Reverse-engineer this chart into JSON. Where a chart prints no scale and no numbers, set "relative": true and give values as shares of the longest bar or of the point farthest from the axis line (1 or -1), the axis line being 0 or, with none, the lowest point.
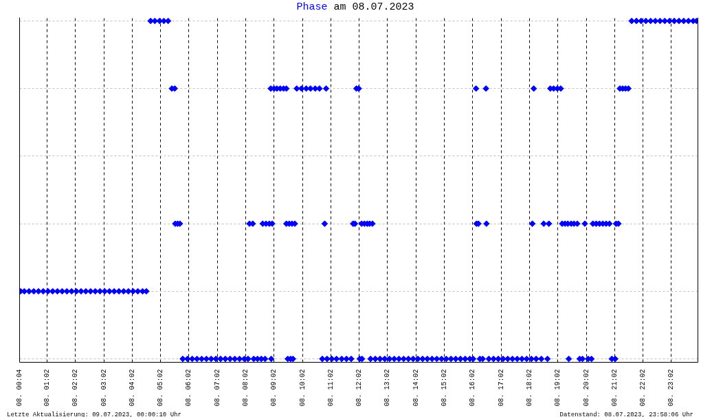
{
  "chart_data": {
    "type": "scatter",
    "title": "Phase am 08.07.2023",
    "x": [
      "2023-07-08T00:06",
      "2023-07-08T00:14",
      "2023-07-08T00:24",
      "2023-07-08T00:34",
      "2023-07-08T00:44",
      "2023-07-08T00:54",
      "2023-07-08T01:04",
      "2023-07-08T01:14",
      "2023-07-08T01:24",
      "2023-07-08T01:34",
      "2023-07-08T01:44",
      "2023-07-08T01:54",
      "2023-07-08T02:04",
      "2023-07-08T02:14",
      "2023-07-08T02:24",
      "2023-07-08T02:34",
      "2023-07-08T02:44",
      "2023-07-08T02:54",
      "2023-07-08T03:04",
      "2023-07-08T03:14",
      "2023-07-08T03:24",
      "2023-07-08T03:34",
      "2023-07-08T03:44",
      "2023-07-08T03:54",
      "2023-07-08T04:04",
      "2023-07-08T04:14",
      "2023-07-08T04:24",
      "2023-07-08T04:32",
      "2023-07-08T04:41",
      "2023-07-08T04:50",
      "2023-07-08T05:00",
      "2023-07-08T05:09",
      "2023-07-08T05:18",
      "2023-07-08T05:26",
      "2023-07-08T05:32",
      "2023-07-08T05:33",
      "2023-07-08T05:38",
      "2023-07-08T05:43",
      "2023-07-08T05:49",
      "2023-07-08T05:59",
      "2023-07-08T06:09",
      "2023-07-08T06:19",
      "2023-07-08T06:29",
      "2023-07-08T06:39",
      "2023-07-08T06:49",
      "2023-07-08T06:59",
      "2023-07-08T07:09",
      "2023-07-08T07:19",
      "2023-07-08T07:29",
      "2023-07-08T07:39",
      "2023-07-08T07:49",
      "2023-07-08T07:59",
      "2023-07-08T08:07",
      "2023-07-08T08:10",
      "2023-07-08T08:17",
      "2023-07-08T08:19",
      "2023-07-08T08:27",
      "2023-07-08T08:35",
      "2023-07-08T08:43",
      "2023-07-08T08:38",
      "2023-07-08T08:45",
      "2023-07-08T08:52",
      "2023-07-08T08:58",
      "2023-07-08T08:55",
      "2023-07-08T09:02",
      "2023-07-08T09:08",
      "2023-07-08T09:15",
      "2023-07-08T09:22",
      "2023-07-08T09:28",
      "2023-07-08T08:56",
      "2023-07-08T09:28",
      "2023-07-08T09:34",
      "2023-07-08T09:40",
      "2023-07-08T09:46",
      "2023-07-08T09:31",
      "2023-07-08T09:37",
      "2023-07-08T09:42",
      "2023-07-08T09:50",
      "2023-07-08T10:00",
      "2023-07-08T10:10",
      "2023-07-08T10:19",
      "2023-07-08T10:29",
      "2023-07-08T10:38",
      "2023-07-08T10:49",
      "2023-07-08T10:52",
      "2023-07-08T10:44",
      "2023-07-08T10:54",
      "2023-07-08T11:04",
      "2023-07-08T11:14",
      "2023-07-08T11:25",
      "2023-07-08T11:35",
      "2023-07-08T11:45",
      "2023-07-08T11:49",
      "2023-07-08T11:53",
      "2023-07-08T11:56",
      "2023-07-08T12:01",
      "2023-07-08T12:03",
      "2023-07-08T12:08",
      "2023-07-08T12:07",
      "2023-07-08T12:13",
      "2023-07-08T12:19",
      "2023-07-08T12:24",
      "2023-07-08T12:30",
      "2023-07-08T12:26",
      "2023-07-08T12:36",
      "2023-07-08T12:46",
      "2023-07-08T12:56",
      "2023-07-08T13:06",
      "2023-07-08T13:16",
      "2023-07-08T13:26",
      "2023-07-08T13:36",
      "2023-07-08T13:46",
      "2023-07-08T13:56",
      "2023-07-08T14:06",
      "2023-07-08T14:16",
      "2023-07-08T14:26",
      "2023-07-08T14:36",
      "2023-07-08T14:46",
      "2023-07-08T14:56",
      "2023-07-08T15:06",
      "2023-07-08T15:16",
      "2023-07-08T15:26",
      "2023-07-08T15:36",
      "2023-07-08T15:46",
      "2023-07-08T15:56",
      "2023-07-08T16:03",
      "2023-07-08T16:09",
      "2023-07-08T16:10",
      "2023-07-08T16:14",
      "2023-07-08T16:17",
      "2023-07-08T16:23",
      "2023-07-08T16:30",
      "2023-07-08T16:31",
      "2023-07-08T16:36",
      "2023-07-08T16:46",
      "2023-07-08T16:56",
      "2023-07-08T17:06",
      "2023-07-08T17:16",
      "2023-07-08T17:26",
      "2023-07-08T17:36",
      "2023-07-08T17:46",
      "2023-07-08T17:56",
      "2023-07-08T18:06",
      "2023-07-08T18:16",
      "2023-07-08T18:27",
      "2023-07-08T18:08",
      "2023-07-08T18:11",
      "2023-07-08T18:32",
      "2023-07-08T18:43",
      "2023-07-08T18:40",
      "2023-07-08T18:46",
      "2023-07-08T18:53",
      "2023-07-08T19:01",
      "2023-07-08T19:08",
      "2023-07-08T19:11",
      "2023-07-08T19:17",
      "2023-07-08T19:23",
      "2023-07-08T19:30",
      "2023-07-08T19:36",
      "2023-07-08T19:43",
      "2023-07-08T19:25",
      "2023-07-08T19:48",
      "2023-07-08T19:54",
      "2023-07-08T19:59",
      "2023-07-08T20:06",
      "2023-07-08T20:13",
      "2023-07-08T20:16",
      "2023-07-08T20:23",
      "2023-07-08T20:30",
      "2023-07-08T20:37",
      "2023-07-08T20:44",
      "2023-07-08T20:51",
      "2023-07-08T20:56",
      "2023-07-08T21:03",
      "2023-07-08T21:05",
      "2023-07-08T21:10",
      "2023-07-08T21:13",
      "2023-07-08T21:19",
      "2023-07-08T21:25",
      "2023-07-08T21:31",
      "2023-07-08T21:38",
      "2023-07-08T21:48",
      "2023-07-08T21:58",
      "2023-07-08T22:08",
      "2023-07-08T22:18",
      "2023-07-08T22:28",
      "2023-07-08T22:38",
      "2023-07-08T22:48",
      "2023-07-08T22:58",
      "2023-07-08T23:08",
      "2023-07-08T23:18",
      "2023-07-08T23:28",
      "2023-07-08T23:38",
      "2023-07-08T23:48",
      "2023-07-08T23:55"
    ],
    "values": [
      0.2,
      0.2,
      0.2,
      0.2,
      0.2,
      0.2,
      0.2,
      0.2,
      0.2,
      0.2,
      0.2,
      0.2,
      0.2,
      0.2,
      0.2,
      0.2,
      0.2,
      0.2,
      0.2,
      0.2,
      0.2,
      0.2,
      0.2,
      0.2,
      0.2,
      0.2,
      0.2,
      0.2,
      1,
      1,
      1,
      1,
      1,
      0.8,
      0.8,
      0.4,
      0.4,
      0.4,
      0,
      0,
      0,
      0,
      0,
      0,
      0,
      0,
      0,
      0,
      0,
      0,
      0,
      0,
      0,
      0.4,
      0.4,
      0,
      0,
      0,
      0,
      0.4,
      0.4,
      0.4,
      0.4,
      0.8,
      0.8,
      0.8,
      0.8,
      0.8,
      0.8,
      0,
      0.4,
      0.4,
      0.4,
      0.4,
      0,
      0,
      0,
      0.8,
      0.8,
      0.8,
      0.8,
      0.8,
      0.8,
      0.4,
      0.8,
      0,
      0,
      0,
      0,
      0,
      0,
      0,
      0.4,
      0.4,
      0.8,
      0.8,
      0,
      0,
      0.4,
      0.4,
      0.4,
      0.4,
      0.4,
      0,
      0,
      0,
      0,
      0,
      0,
      0,
      0,
      0,
      0,
      0,
      0,
      0,
      0,
      0,
      0,
      0,
      0,
      0,
      0,
      0,
      0,
      0,
      0.8,
      0.4,
      0.4,
      0,
      0,
      0.8,
      0.4,
      0,
      0,
      0,
      0,
      0,
      0,
      0,
      0,
      0,
      0,
      0,
      0,
      0.4,
      0.8,
      0.4,
      0.4,
      0,
      0.8,
      0.8,
      0.8,
      0.8,
      0.4,
      0.4,
      0.4,
      0.4,
      0.4,
      0.4,
      0,
      0,
      0,
      0.4,
      0,
      0,
      0.4,
      0.4,
      0.4,
      0.4,
      0.4,
      0.4,
      0,
      0,
      0.4,
      0.4,
      0.8,
      0.8,
      0.8,
      0.8,
      1,
      1,
      1,
      1,
      1,
      1,
      1,
      1,
      1,
      1,
      1,
      1,
      1,
      1,
      1
    ],
    "relative": true,
    "color": "#0000ff",
    "marker": "diamond",
    "xlim": [
      "2023-07-08T00:04",
      "2023-07-08T23:58"
    ],
    "xticks": [
      {
        "value": "2023-07-08T00:04",
        "label": "08. 00:04"
      },
      {
        "value": "2023-07-08T01:02",
        "label": "08. 01:02"
      },
      {
        "value": "2023-07-08T02:02",
        "label": "08. 02:02"
      },
      {
        "value": "2023-07-08T03:02",
        "label": "08. 03:02"
      },
      {
        "value": "2023-07-08T04:02",
        "label": "08. 04:02"
      },
      {
        "value": "2023-07-08T05:02",
        "label": "08. 05:02"
      },
      {
        "value": "2023-07-08T06:02",
        "label": "08. 06:02"
      },
      {
        "value": "2023-07-08T07:02",
        "label": "08. 07:02"
      },
      {
        "value": "2023-07-08T08:02",
        "label": "08. 08:02"
      },
      {
        "value": "2023-07-08T09:02",
        "label": "08. 09:02"
      },
      {
        "value": "2023-07-08T10:02",
        "label": "08. 10:02"
      },
      {
        "value": "2023-07-08T11:02",
        "label": "08. 11:02"
      },
      {
        "value": "2023-07-08T12:02",
        "label": "08. 12:02"
      },
      {
        "value": "2023-07-08T13:02",
        "label": "08. 13:02"
      },
      {
        "value": "2023-07-08T14:02",
        "label": "08. 14:02"
      },
      {
        "value": "2023-07-08T15:02",
        "label": "08. 15:02"
      },
      {
        "value": "2023-07-08T16:02",
        "label": "08. 16:02"
      },
      {
        "value": "2023-07-08T17:02",
        "label": "08. 17:02"
      },
      {
        "value": "2023-07-08T18:02",
        "label": "08. 18:02"
      },
      {
        "value": "2023-07-08T19:02",
        "label": "08. 19:02"
      },
      {
        "value": "2023-07-08T20:02",
        "label": "08. 20:02"
      },
      {
        "value": "2023-07-08T21:02",
        "label": "08. 21:02"
      },
      {
        "value": "2023-07-08T22:02",
        "label": "08. 22:02"
      },
      {
        "value": "2023-07-08T23:02",
        "label": "08. 23:02"
      }
    ],
    "grid": true,
    "annotations": [
      "Letzte Aktualisierung: 09.07.2023, 00:00:10 Uhr",
      "Datenstand: 08.07.2023, 23:58:06 Uhr"
    ]
  }
}
